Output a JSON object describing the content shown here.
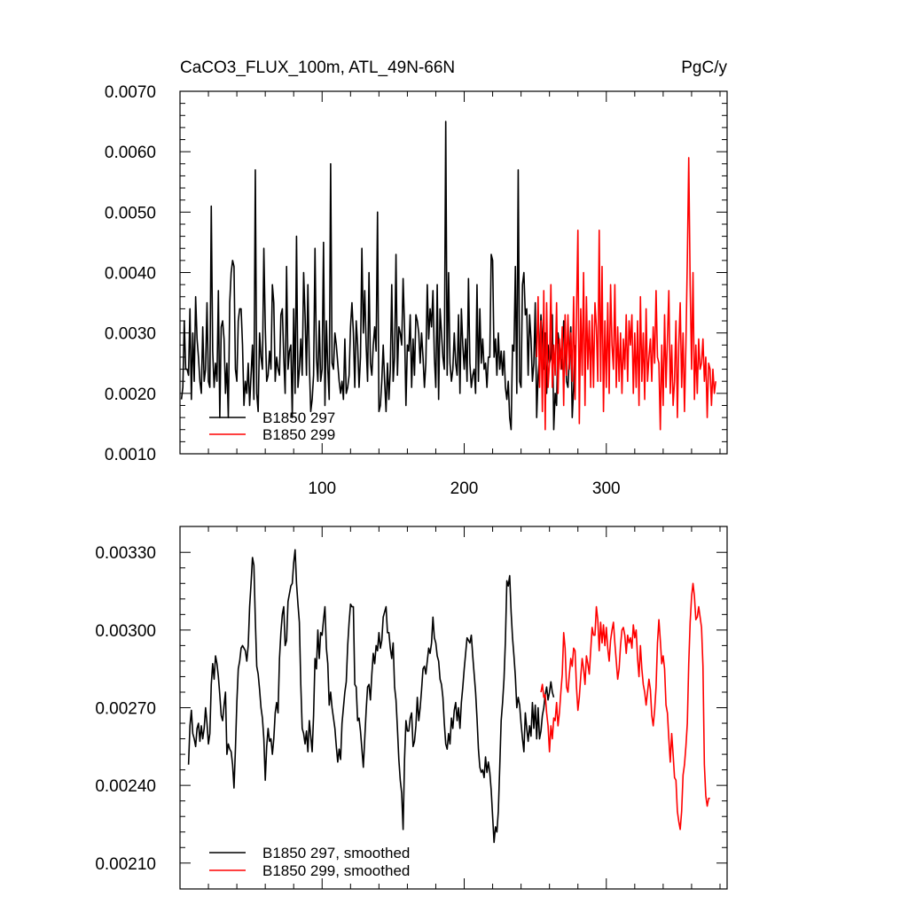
{
  "chart_data": [
    {
      "type": "line",
      "title": "CaCO3_FLUX_100m, ATL_49N-66N",
      "units": "PgC/y",
      "xlim": [
        0,
        385
      ],
      "ylim": [
        0.001,
        0.007
      ],
      "xticks": [
        100,
        200,
        300
      ],
      "yticks": [
        "0.0010",
        "0.0020",
        "0.0030",
        "0.0040",
        "0.0050",
        "0.0060",
        "0.0070"
      ],
      "legend_position": "bottom-left",
      "series": [
        {
          "name": "B1850 297",
          "color": "#000000",
          "x_start": 1,
          "values": [
            0.0019,
            0.0021,
            0.0032,
            0.0024,
            0.0024,
            0.0023,
            0.0034,
            0.0019,
            0.003,
            0.0022,
            0.0036,
            0.0029,
            0.0026,
            0.0022,
            0.002,
            0.0031,
            0.0022,
            0.0024,
            0.0035,
            0.0022,
            0.0021,
            0.0051,
            0.0027,
            0.0021,
            0.0025,
            0.0022,
            0.0037,
            0.0016,
            0.0031,
            0.0032,
            0.0029,
            0.002,
            0.0025,
            0.0016,
            0.0035,
            0.004,
            0.0042,
            0.0041,
            0.0024,
            0.0022,
            0.0032,
            0.0034,
            0.0034,
            0.0028,
            0.0018,
            0.0022,
            0.002,
            0.0025,
            0.0018,
            0.0023,
            0.0028,
            0.0019,
            0.0057,
            0.002,
            0.0017,
            0.003,
            0.0026,
            0.0024,
            0.0044,
            0.0031,
            0.0022,
            0.0023,
            0.0027,
            0.0024,
            0.0038,
            0.0035,
            0.0022,
            0.0026,
            0.0024,
            0.0023,
            0.0033,
            0.0034,
            0.0026,
            0.002,
            0.0041,
            0.0024,
            0.0027,
            0.0028,
            0.0016,
            0.0034,
            0.002,
            0.0046,
            0.0021,
            0.0024,
            0.0029,
            0.0023,
            0.004,
            0.0033,
            0.0023,
            0.0038,
            0.0025,
            0.0017,
            0.0019,
            0.0023,
            0.0044,
            0.0026,
            0.0022,
            0.0032,
            0.0022,
            0.0024,
            0.0045,
            0.0018,
            0.0032,
            0.0024,
            0.0019,
            0.0058,
            0.0025,
            0.0024,
            0.003,
            0.0028,
            0.0025,
            0.0022,
            0.002,
            0.0022,
            0.0019,
            0.0029,
            0.002,
            0.0021,
            0.0023,
            0.0031,
            0.0035,
            0.003,
            0.0021,
            0.0032,
            0.0028,
            0.0021,
            0.0026,
            0.0044,
            0.003,
            0.0037,
            0.0028,
            0.0022,
            0.004,
            0.0025,
            0.0023,
            0.0028,
            0.0031,
            0.0027,
            0.005,
            0.0017,
            0.0018,
            0.0022,
            0.0028,
            0.0022,
            0.0017,
            0.0025,
            0.0019,
            0.0024,
            0.0038,
            0.0022,
            0.0026,
            0.0043,
            0.0023,
            0.0031,
            0.003,
            0.0028,
            0.0039,
            0.0031,
            0.0018,
            0.0028,
            0.0027,
            0.0033,
            0.0021,
            0.0029,
            0.0023,
            0.0033,
            0.0032,
            0.003,
            0.0025,
            0.003,
            0.0026,
            0.0021,
            0.0025,
            0.0038,
            0.0029,
            0.0034,
            0.0031,
            0.0037,
            0.0026,
            0.0021,
            0.0038,
            0.0019,
            0.0034,
            0.003,
            0.0026,
            0.0024,
            0.0065,
            0.0023,
            0.004,
            0.0025,
            0.0022,
            0.0024,
            0.003,
            0.0025,
            0.0023,
            0.0033,
            0.002,
            0.0034,
            0.0028,
            0.0024,
            0.0029,
            0.0022,
            0.0039,
            0.0025,
            0.0021,
            0.0023,
            0.0024,
            0.002,
            0.0038,
            0.0022,
            0.0034,
            0.0025,
            0.0029,
            0.0024,
            0.0025,
            0.0021,
            0.0026,
            0.0026,
            0.0043,
            0.0042,
            0.0026,
            0.0029,
            0.0023,
            0.003,
            0.0024,
            0.0027,
            0.0023,
            0.0027,
            0.0021,
            0.0019,
            0.0022,
            0.0016,
            0.0014,
            0.0028,
            0.0027,
            0.0041,
            0.002,
            0.0057,
            0.0022,
            0.0021,
            0.0038,
            0.004,
            0.0033,
            0.0034,
            0.0023,
            0.0033,
            0.0029,
            0.0022,
            0.0025,
            0.0035,
            0.0016,
            0.0023,
            0.0026,
            0.0033,
            0.0029,
            0.0024,
            0.003,
            0.002,
            0.0028,
            0.0025,
            0.0026,
            0.0033,
            0.0014,
            0.002,
            0.0018,
            0.003,
            0.0028,
            0.0026,
            0.0024,
            0.0032,
            0.0028,
            0.0022,
            0.0021,
            0.0026,
            0.0031,
            0.0016,
            0.0021,
            0.0028
          ]
        },
        {
          "name": "B1850 299",
          "color": "#ff0000",
          "x_start": 251,
          "values": [
            0.0026,
            0.0036,
            0.0021,
            0.0032,
            0.0017,
            0.0037,
            0.0014,
            0.0035,
            0.0021,
            0.0025,
            0.0038,
            0.0021,
            0.0028,
            0.0023,
            0.0035,
            0.002,
            0.0029,
            0.0024,
            0.0031,
            0.0018,
            0.0033,
            0.0023,
            0.0033,
            0.0024,
            0.003,
            0.0022,
            0.0036,
            0.0019,
            0.0033,
            0.0047,
            0.0015,
            0.0034,
            0.0023,
            0.004,
            0.0018,
            0.0036,
            0.0024,
            0.0032,
            0.0021,
            0.0033,
            0.0021,
            0.0035,
            0.0031,
            0.0022,
            0.0047,
            0.0022,
            0.0041,
            0.0017,
            0.0032,
            0.0021,
            0.0035,
            0.002,
            0.0038,
            0.0028,
            0.0024,
            0.0038,
            0.0021,
            0.0031,
            0.0022,
            0.003,
            0.002,
            0.0029,
            0.0024,
            0.0033,
            0.0022,
            0.0032,
            0.0028,
            0.0033,
            0.002,
            0.003,
            0.0021,
            0.0032,
            0.0018,
            0.0036,
            0.0022,
            0.003,
            0.0019,
            0.0034,
            0.0022,
            0.0026,
            0.0029,
            0.0022,
            0.0031,
            0.0025,
            0.0037,
            0.0026,
            0.0025,
            0.0014,
            0.0028,
            0.0018,
            0.0033,
            0.0021,
            0.0029,
            0.0037,
            0.002,
            0.0028,
            0.0018,
            0.0022,
            0.0032,
            0.0016,
            0.0028,
            0.0035,
            0.0021,
            0.003,
            0.0017,
            0.0028,
            0.0042,
            0.0059,
            0.0038,
            0.0024,
            0.004,
            0.0019,
            0.0028,
            0.002,
            0.0029,
            0.0024,
            0.0025,
            0.0029,
            0.0022,
            0.0026,
            0.0016,
            0.0025,
            0.0024,
            0.0018,
            0.0024,
            0.002,
            0.0022
          ]
        }
      ]
    },
    {
      "type": "line",
      "title": "",
      "xlim": [
        0,
        385
      ],
      "ylim": [
        0.002,
        0.0034
      ],
      "xticks": [
        100,
        200,
        300
      ],
      "yticks": [
        "0.00210",
        "0.00240",
        "0.00270",
        "0.00300",
        "0.00330"
      ],
      "legend_position": "bottom-left",
      "series": [
        {
          "name": "B1850 297, smoothed",
          "color": "#000000",
          "x_start": 6,
          "values": [
            0.00248,
            0.00263,
            0.00269,
            0.0026,
            0.00258,
            0.00255,
            0.00262,
            0.00264,
            0.00257,
            0.00263,
            0.00258,
            0.00262,
            0.0027,
            0.00264,
            0.00256,
            0.0026,
            0.00279,
            0.00287,
            0.00281,
            0.0029,
            0.00287,
            0.00282,
            0.00275,
            0.00267,
            0.00265,
            0.00271,
            0.00276,
            0.00252,
            0.00256,
            0.00254,
            0.00253,
            0.00248,
            0.00239,
            0.00254,
            0.00272,
            0.00285,
            0.00288,
            0.00293,
            0.00294,
            0.00293,
            0.00292,
            0.00288,
            0.00294,
            0.00309,
            0.00318,
            0.00328,
            0.00325,
            0.00304,
            0.00286,
            0.00283,
            0.00277,
            0.0027,
            0.00266,
            0.00258,
            0.00242,
            0.00255,
            0.00262,
            0.00257,
            0.00258,
            0.00252,
            0.00258,
            0.00268,
            0.00272,
            0.00268,
            0.00289,
            0.00299,
            0.00306,
            0.00309,
            0.00294,
            0.00296,
            0.00311,
            0.00314,
            0.00317,
            0.00318,
            0.00326,
            0.00331,
            0.00318,
            0.0031,
            0.00303,
            0.00279,
            0.00262,
            0.0026,
            0.00256,
            0.00261,
            0.00253,
            0.00265,
            0.00259,
            0.00253,
            0.00267,
            0.00289,
            0.00285,
            0.003,
            0.00289,
            0.00299,
            0.00298,
            0.00304,
            0.00309,
            0.00293,
            0.00287,
            0.00271,
            0.00276,
            0.0027,
            0.00266,
            0.00262,
            0.00255,
            0.00249,
            0.00254,
            0.0025,
            0.00264,
            0.0027,
            0.00276,
            0.0028,
            0.00294,
            0.00303,
            0.0031,
            0.00309,
            0.00309,
            0.00279,
            0.00278,
            0.00265,
            0.00266,
            0.00261,
            0.00254,
            0.00247,
            0.00258,
            0.00269,
            0.00278,
            0.00279,
            0.00273,
            0.00283,
            0.00291,
            0.00287,
            0.00294,
            0.00292,
            0.00299,
            0.00293,
            0.00296,
            0.00305,
            0.00307,
            0.00309,
            0.00299,
            0.00299,
            0.00293,
            0.00289,
            0.00295,
            0.00278,
            0.00273,
            0.00262,
            0.0025,
            0.00242,
            0.00237,
            0.00223,
            0.0025,
            0.00265,
            0.00261,
            0.00261,
            0.00266,
            0.00268,
            0.00255,
            0.00257,
            0.00263,
            0.00274,
            0.00265,
            0.0027,
            0.00277,
            0.00285,
            0.00286,
            0.00283,
            0.00288,
            0.00293,
            0.00291,
            0.00295,
            0.00305,
            0.00297,
            0.00295,
            0.0029,
            0.00288,
            0.00281,
            0.00279,
            0.00274,
            0.00264,
            0.00256,
            0.00254,
            0.0026,
            0.00256,
            0.00266,
            0.00262,
            0.00269,
            0.00272,
            0.00265,
            0.0027,
            0.00262,
            0.00272,
            0.00278,
            0.00285,
            0.00291,
            0.00297,
            0.00296,
            0.00295,
            0.00298,
            0.0029,
            0.00283,
            0.00276,
            0.00266,
            0.00254,
            0.00247,
            0.00245,
            0.00246,
            0.00243,
            0.00251,
            0.00245,
            0.00249,
            0.00245,
            0.00238,
            0.00228,
            0.00218,
            0.00224,
            0.00222,
            0.0023,
            0.00247,
            0.00265,
            0.00272,
            0.00281,
            0.00296,
            0.00319,
            0.00317,
            0.00321,
            0.00307,
            0.00297,
            0.0029,
            0.00282,
            0.0027,
            0.00274,
            0.00271,
            0.00264,
            0.00258,
            0.00253,
            0.00268,
            0.00262,
            0.00257,
            0.00263,
            0.00259,
            0.00272,
            0.00262,
            0.00271,
            0.00258,
            0.0027,
            0.00258,
            0.00261,
            0.00267,
            0.0027,
            0.00275,
            0.00278,
            0.00273,
            0.00276,
            0.0028,
            0.00276,
            0.00274
          ]
        },
        {
          "name": "B1850 299, smoothed",
          "color": "#ff0000",
          "x_start": 254,
          "values": [
            0.00276,
            0.00279,
            0.00274,
            0.00275,
            0.00268,
            0.00263,
            0.00253,
            0.00263,
            0.00258,
            0.00266,
            0.00265,
            0.00272,
            0.00263,
            0.00268,
            0.00276,
            0.00283,
            0.00299,
            0.00293,
            0.00278,
            0.00276,
            0.00283,
            0.00289,
            0.00286,
            0.00293,
            0.00292,
            0.00278,
            0.00269,
            0.00274,
            0.00282,
            0.00289,
            0.00285,
            0.00279,
            0.0029,
            0.00287,
            0.00283,
            0.00292,
            0.00301,
            0.00298,
            0.00298,
            0.00309,
            0.00304,
            0.00292,
            0.00303,
            0.00295,
            0.00302,
            0.00294,
            0.00301,
            0.00293,
            0.00288,
            0.00296,
            0.003,
            0.00303,
            0.00295,
            0.00288,
            0.00281,
            0.00285,
            0.00294,
            0.003,
            0.00301,
            0.00298,
            0.00291,
            0.00298,
            0.00295,
            0.00297,
            0.00293,
            0.00302,
            0.00297,
            0.003,
            0.00289,
            0.00282,
            0.00294,
            0.00285,
            0.00279,
            0.00276,
            0.00271,
            0.00276,
            0.00281,
            0.00277,
            0.00267,
            0.00263,
            0.00269,
            0.00278,
            0.00295,
            0.00304,
            0.00296,
            0.00287,
            0.0029,
            0.00285,
            0.00271,
            0.00268,
            0.00258,
            0.00249,
            0.0026,
            0.00252,
            0.00243,
            0.00242,
            0.0023,
            0.00226,
            0.00223,
            0.0023,
            0.00244,
            0.00248,
            0.00255,
            0.00264,
            0.00287,
            0.00303,
            0.00313,
            0.00318,
            0.00313,
            0.00304,
            0.00305,
            0.00309,
            0.00305,
            0.00301,
            0.00286,
            0.00248,
            0.00236,
            0.00232,
            0.00235,
            0.00235
          ]
        }
      ]
    }
  ]
}
